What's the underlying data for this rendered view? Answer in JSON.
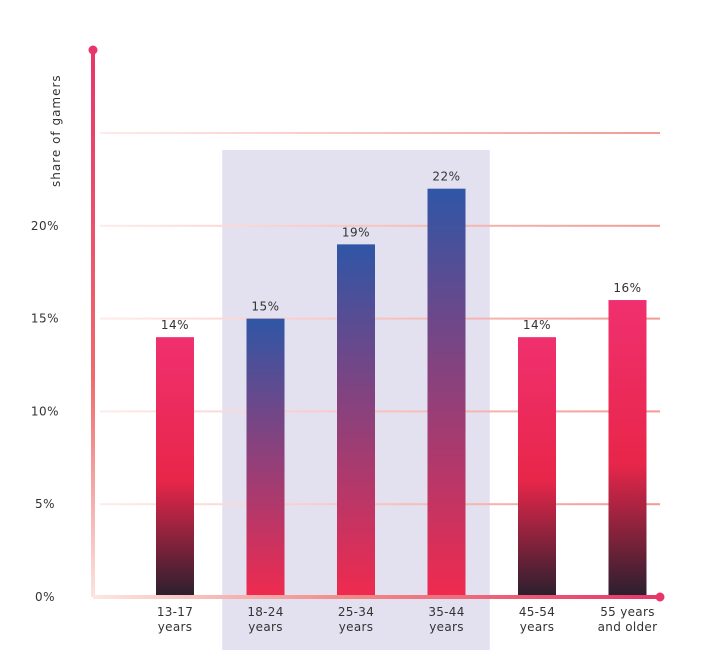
{
  "chart_data": {
    "type": "bar",
    "ylabel": "share of gamers",
    "categories": [
      [
        "13-17",
        "years"
      ],
      [
        "18-24",
        "years"
      ],
      [
        "25-34",
        "years"
      ],
      [
        "35-44",
        "years"
      ],
      [
        "45-54",
        "years"
      ],
      [
        "55 years",
        "and older"
      ]
    ],
    "values": [
      14,
      15,
      19,
      22,
      14,
      16
    ],
    "data_labels": [
      "14%",
      "15%",
      "19%",
      "22%",
      "14%",
      "16%"
    ],
    "highlighted_categories": [
      1,
      2,
      3
    ],
    "ylim": [
      0,
      25
    ],
    "yticks": [
      0,
      5,
      10,
      15,
      20
    ],
    "ytick_labels": [
      "0%",
      "5%",
      "10%",
      "15%",
      "20%"
    ],
    "grid": true,
    "colors": {
      "axis": "#e8356a",
      "gridline": "#f2918a",
      "highlight_band": "#e3e1f0",
      "bar_normal_top": "#f0306f",
      "bar_normal_mid": "#e8264a",
      "bar_normal_bottom": "#2a1f2e",
      "bar_highlight_top": "#2f56a6",
      "bar_highlight_bottom": "#f02a4e"
    }
  }
}
